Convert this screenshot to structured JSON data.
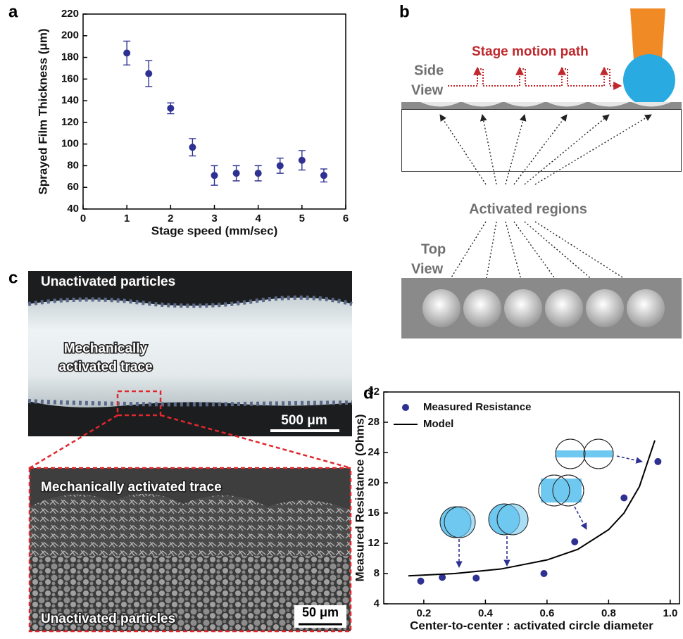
{
  "panels": {
    "a": "a",
    "b": "b",
    "c": "c",
    "d": "d"
  },
  "chart_data": [
    {
      "type": "scatter",
      "xlabel": "Stage speed (mm/sec)",
      "ylabel": "Sprayed Film Thickness (μm)",
      "x": [
        1,
        1.5,
        2,
        2.5,
        3,
        3.5,
        4,
        4.5,
        5,
        5.5
      ],
      "values": [
        184,
        165,
        133,
        97,
        71,
        73,
        73,
        80,
        85,
        71
      ],
      "errors": [
        11,
        12,
        5,
        8,
        9,
        7,
        7,
        7,
        9,
        6
      ],
      "color": "#2e3192",
      "xlim": [
        0,
        6
      ],
      "xticks": [
        0,
        1,
        2,
        3,
        4,
        5,
        6
      ],
      "ylim": [
        40,
        220
      ],
      "yticks": [
        40,
        60,
        80,
        100,
        120,
        140,
        160,
        180,
        200,
        220
      ]
    },
    {
      "type": "scatter",
      "xlabel": "Center-to-center : activated circle diameter",
      "ylabel": "Measured Resistance (Ohms)",
      "series": [
        {
          "name": "Measured Resistance",
          "type": "scatter",
          "color": "#2e3192",
          "x": [
            0.19,
            0.26,
            0.37,
            0.59,
            0.69,
            0.85,
            0.96
          ],
          "values": [
            7,
            7.5,
            7.4,
            8,
            12.2,
            18,
            22.8
          ]
        },
        {
          "name": "Model",
          "type": "line",
          "color": "#000000",
          "x": [
            0.15,
            0.3,
            0.45,
            0.6,
            0.7,
            0.8,
            0.85,
            0.9,
            0.95
          ],
          "values": [
            7.7,
            8,
            8.6,
            9.8,
            11.2,
            13.8,
            16,
            19.5,
            25.6
          ]
        }
      ],
      "xlim": [
        0.07,
        1.03
      ],
      "xticks": [
        0.2,
        0.4,
        0.6,
        0.8,
        {
          "value": 1,
          "label": "1.0"
        }
      ],
      "ylim": [
        4,
        32
      ],
      "yticks": [
        4,
        8,
        12,
        16,
        20,
        24,
        28,
        32
      ],
      "legend": "upper left"
    }
  ],
  "diagram": {
    "motion_label": "Stage motion path",
    "side_view": [
      "Side",
      "View"
    ],
    "top_view": [
      "Top",
      "View"
    ],
    "regions_label": "Activated regions"
  },
  "micrographs": {
    "optical": {
      "top_label": "Unactivated particles",
      "trace_label": [
        "Mechanically",
        "activated trace"
      ],
      "scale": "500 μm"
    },
    "sem": {
      "top_label": "Mechanically activated trace",
      "bottom_label": "Unactivated particles",
      "scale": "50 μm"
    }
  }
}
